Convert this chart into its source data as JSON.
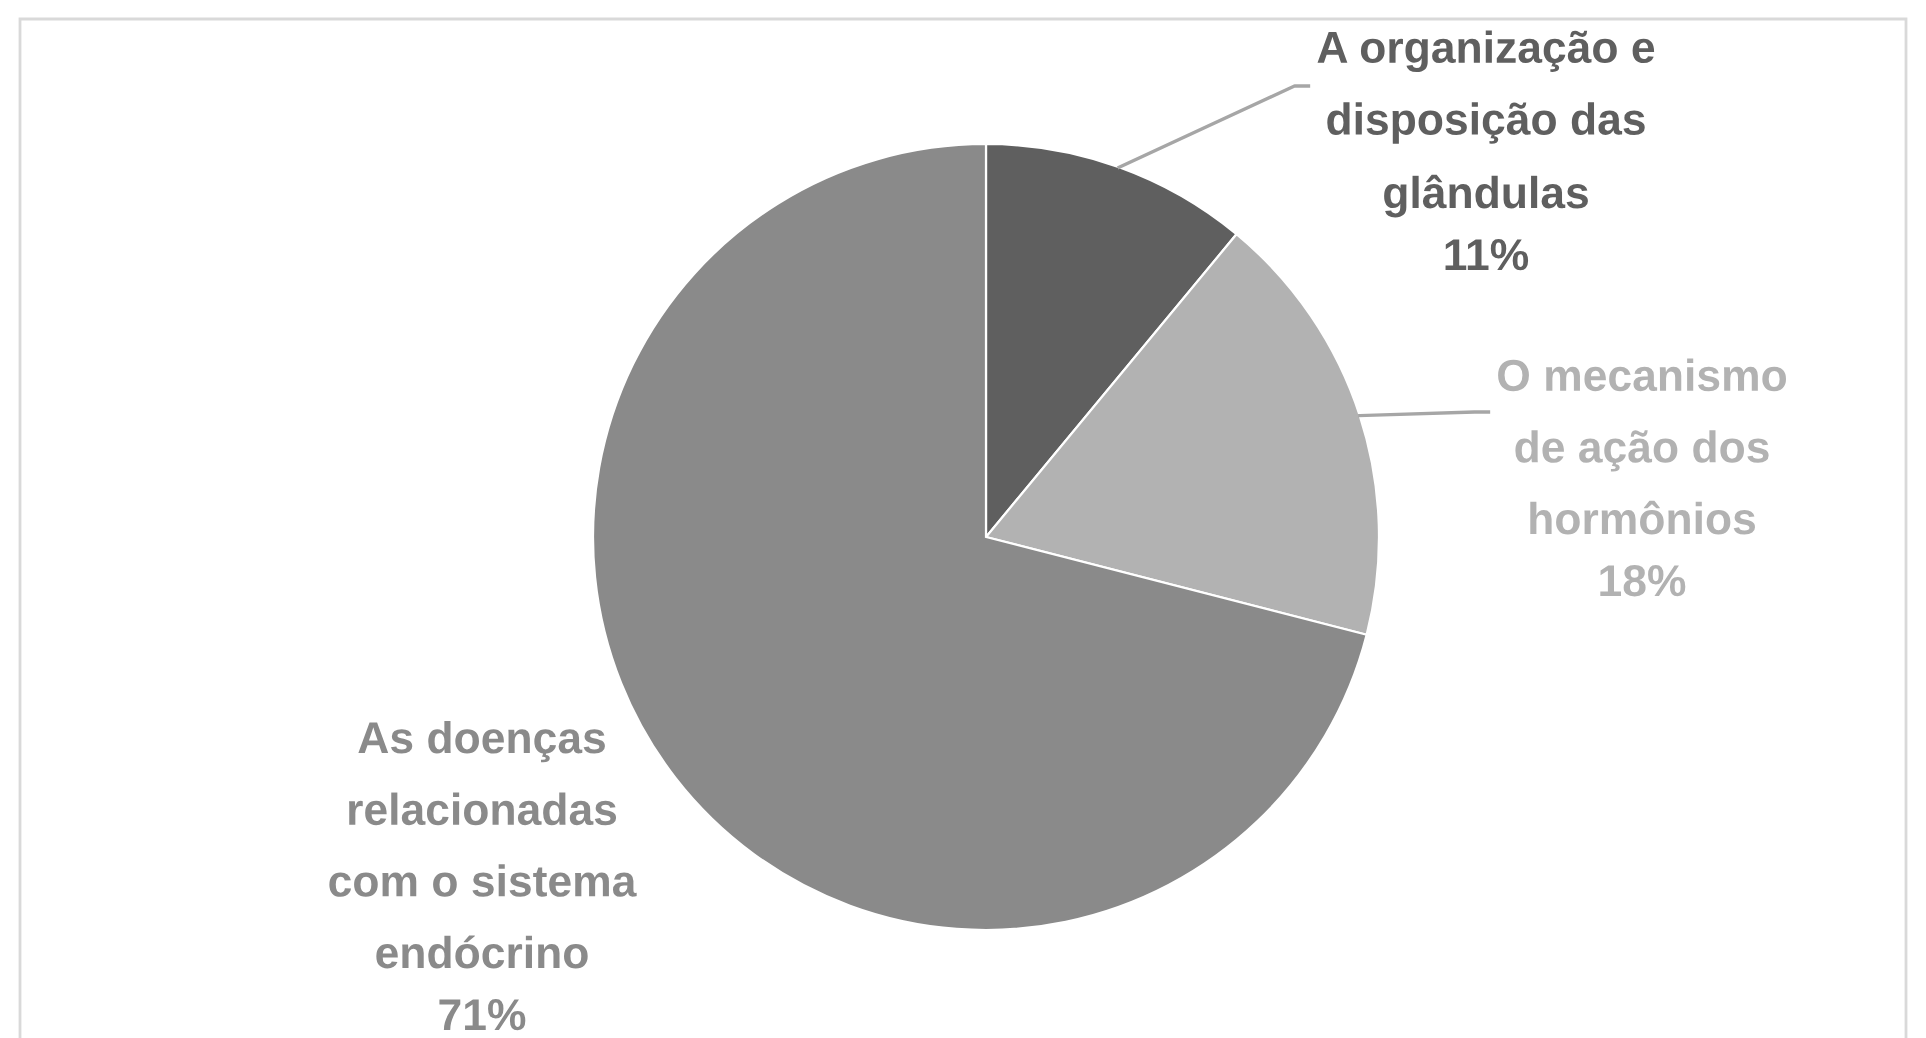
{
  "chart_data": {
    "type": "pie",
    "categories": [
      "A organização e disposição das glândulas",
      "O mecanismo de ação dos hormônios",
      "As doenças relacionadas com o sistema endócrino"
    ],
    "values": [
      11,
      18,
      71
    ],
    "colors": [
      "#5f5f5f",
      "#b2b2b2",
      "#8a8a8a"
    ],
    "value_labels": [
      "11%",
      "18%",
      "71%"
    ]
  }
}
